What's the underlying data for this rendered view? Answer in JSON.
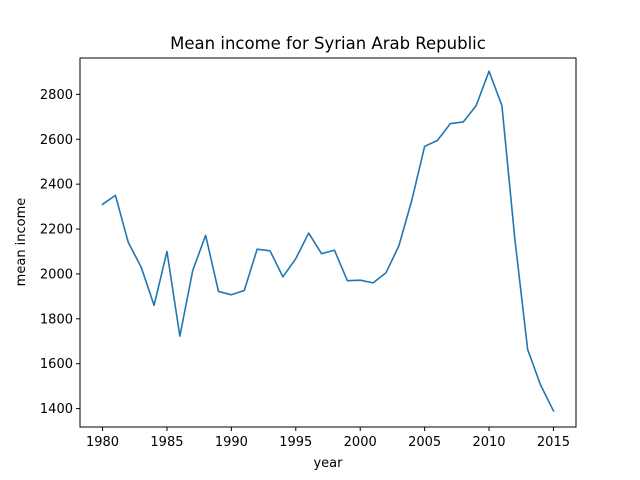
{
  "chart_data": {
    "type": "line",
    "title": "Mean income for Syrian Arab Republic",
    "xlabel": "year",
    "ylabel": "mean income",
    "xlim": [
      1978.25,
      2016.75
    ],
    "ylim": [
      1318,
      2962
    ],
    "xticks": [
      1980,
      1985,
      1990,
      1995,
      2000,
      2005,
      2010,
      2015
    ],
    "yticks": [
      1400,
      1600,
      1800,
      2000,
      2200,
      2400,
      2600,
      2800
    ],
    "grid": false,
    "line_color": "#1f77b4",
    "series": [
      {
        "x": [
          1980,
          1981,
          1982,
          1983,
          1984,
          1985,
          1986,
          1987,
          1988,
          1989,
          1990,
          1991,
          1992,
          1993,
          1994,
          1995,
          1996,
          1997,
          1998,
          1999,
          2000,
          2001,
          2002,
          2003,
          2004,
          2005,
          2006,
          2007,
          2008,
          2009,
          2010,
          2011,
          2012,
          2013,
          2014,
          2015
        ],
        "values": [
          2310,
          2350,
          2140,
          2030,
          1860,
          2100,
          1723,
          2015,
          2172,
          1922,
          1907,
          1926,
          2110,
          2103,
          1987,
          2068,
          2182,
          2090,
          2106,
          1970,
          1972,
          1960,
          2005,
          2125,
          2327,
          2568,
          2595,
          2670,
          2677,
          2750,
          2903,
          2750,
          2157,
          1663,
          1505,
          1390
        ]
      }
    ]
  }
}
